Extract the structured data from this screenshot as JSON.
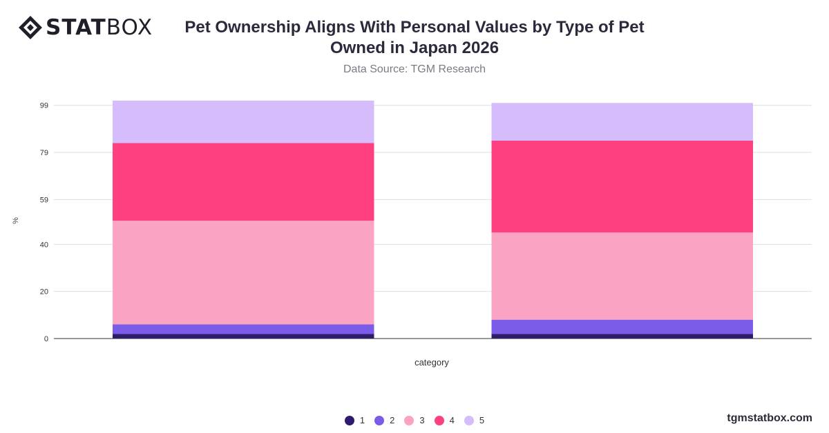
{
  "brand": {
    "bold": "STAT",
    "light": "BOX",
    "website": "tgmstatbox.com"
  },
  "chart_data": {
    "type": "bar",
    "stacked": true,
    "title": "Pet Ownership Aligns With Personal Values by Type of Pet Owned in Japan 2026",
    "subtitle": "Data Source: TGM Research",
    "xlabel": "category",
    "ylabel": "%",
    "ylim": [
      0,
      100
    ],
    "yticks": [
      0,
      20,
      40,
      59,
      79,
      99
    ],
    "grid": true,
    "legend_position": "bottom",
    "categories": [
      "",
      ""
    ],
    "series": [
      {
        "name": "1",
        "color": "#2e1a6e",
        "values": [
          2,
          2
        ]
      },
      {
        "name": "2",
        "color": "#7b5ce8",
        "values": [
          4,
          6
        ]
      },
      {
        "name": "3",
        "color": "#fba3c3",
        "values": [
          44,
          37
        ]
      },
      {
        "name": "4",
        "color": "#fe3f80",
        "values": [
          33,
          39
        ]
      },
      {
        "name": "5",
        "color": "#d5bcfb",
        "values": [
          18,
          16
        ]
      }
    ]
  }
}
